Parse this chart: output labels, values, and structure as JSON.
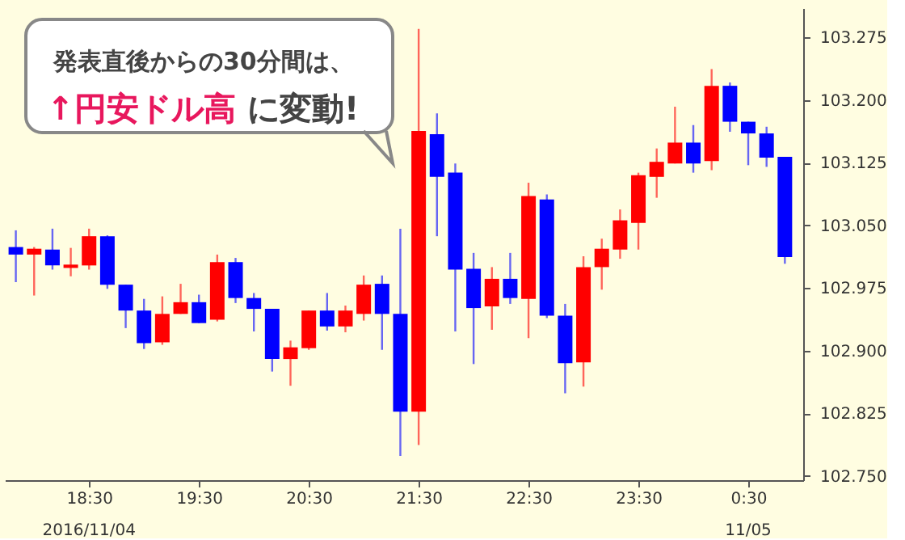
{
  "chart_data": {
    "type": "candlestick",
    "annotations": [
      "発表直後からの30分間は、",
      "↑円安ドル高",
      "に変動!",
      "2016/11/04",
      "11/05"
    ],
    "x": [
      "2016-11-04T17:50",
      "2016-11-04T18:00",
      "2016-11-04T18:10",
      "2016-11-04T18:20",
      "2016-11-04T18:30",
      "2016-11-04T18:40",
      "2016-11-04T18:50",
      "2016-11-04T19:00",
      "2016-11-04T19:10",
      "2016-11-04T19:20",
      "2016-11-04T19:30",
      "2016-11-04T19:40",
      "2016-11-04T19:50",
      "2016-11-04T20:00",
      "2016-11-04T20:10",
      "2016-11-04T20:20",
      "2016-11-04T20:30",
      "2016-11-04T20:40",
      "2016-11-04T20:50",
      "2016-11-04T21:00",
      "2016-11-04T21:10",
      "2016-11-04T21:20",
      "2016-11-04T21:30",
      "2016-11-04T21:40",
      "2016-11-04T21:50",
      "2016-11-04T22:00",
      "2016-11-04T22:10",
      "2016-11-04T22:20",
      "2016-11-04T22:30",
      "2016-11-04T22:40",
      "2016-11-04T22:50",
      "2016-11-04T23:00",
      "2016-11-04T23:10",
      "2016-11-04T23:20",
      "2016-11-04T23:30",
      "2016-11-04T23:40",
      "2016-11-04T23:50",
      "2016-11-05T00:00",
      "2016-11-05T00:10",
      "2016-11-05T00:20",
      "2016-11-05T00:30",
      "2016-11-05T00:40",
      "2016-11-05T00:50"
    ],
    "ohlc": [
      [
        103.024,
        103.044,
        102.982,
        103.015
      ],
      [
        103.015,
        103.024,
        102.966,
        103.022
      ],
      [
        103.021,
        103.046,
        102.997,
        103.002
      ],
      [
        102.999,
        103.023,
        102.989,
        103.003
      ],
      [
        103.002,
        103.046,
        102.997,
        103.037
      ],
      [
        103.037,
        103.038,
        102.974,
        102.979
      ],
      [
        102.979,
        102.979,
        102.927,
        102.948
      ],
      [
        102.948,
        102.962,
        102.902,
        102.909
      ],
      [
        102.91,
        102.965,
        102.907,
        102.944
      ],
      [
        102.944,
        102.98,
        102.944,
        102.958
      ],
      [
        102.958,
        102.967,
        102.933,
        102.933
      ],
      [
        102.937,
        103.015,
        102.935,
        103.006
      ],
      [
        103.006,
        103.011,
        102.957,
        102.963
      ],
      [
        102.963,
        102.969,
        102.923,
        102.95
      ],
      [
        102.95,
        102.95,
        102.875,
        102.89
      ],
      [
        102.89,
        102.912,
        102.858,
        102.904
      ],
      [
        102.903,
        102.948,
        102.901,
        102.948
      ],
      [
        102.948,
        102.969,
        102.924,
        102.929
      ],
      [
        102.929,
        102.954,
        102.922,
        102.948
      ],
      [
        102.944,
        102.99,
        102.936,
        102.979
      ],
      [
        102.98,
        102.99,
        102.901,
        102.944
      ],
      [
        102.944,
        103.046,
        102.774,
        102.827
      ],
      [
        102.827,
        103.285,
        102.787,
        103.163
      ],
      [
        103.159,
        103.184,
        103.037,
        103.108
      ],
      [
        103.113,
        103.124,
        102.923,
        102.997
      ],
      [
        102.998,
        103.017,
        102.884,
        102.951
      ],
      [
        102.953,
        103.0,
        102.925,
        102.986
      ],
      [
        102.986,
        103.017,
        102.956,
        102.963
      ],
      [
        102.962,
        103.101,
        102.915,
        103.085
      ],
      [
        103.081,
        103.087,
        102.939,
        102.942
      ],
      [
        102.942,
        102.956,
        102.849,
        102.885
      ],
      [
        102.886,
        103.013,
        102.857,
        103.0
      ],
      [
        103.0,
        103.034,
        102.973,
        103.022
      ],
      [
        103.021,
        103.069,
        103.01,
        103.056
      ],
      [
        103.053,
        103.113,
        103.021,
        103.11
      ],
      [
        103.108,
        103.142,
        103.083,
        103.126
      ],
      [
        103.124,
        103.192,
        103.124,
        103.149
      ],
      [
        103.149,
        103.17,
        103.113,
        103.124
      ],
      [
        103.127,
        103.237,
        103.116,
        103.217
      ],
      [
        103.217,
        103.221,
        103.162,
        103.174
      ],
      [
        103.174,
        103.174,
        103.122,
        103.16
      ],
      [
        103.16,
        103.168,
        103.12,
        103.131
      ],
      [
        103.132,
        103.132,
        103.004,
        103.012
      ]
    ],
    "colors": [
      "#0000ff",
      "#ff0000",
      "#0000ff",
      "#ff0000",
      "#ff0000",
      "#0000ff",
      "#0000ff",
      "#0000ff",
      "#ff0000",
      "#ff0000",
      "#0000ff",
      "#ff0000",
      "#0000ff",
      "#0000ff",
      "#0000ff",
      "#ff0000",
      "#ff0000",
      "#0000ff",
      "#ff0000",
      "#ff0000",
      "#0000ff",
      "#0000ff",
      "#ff0000",
      "#0000ff",
      "#0000ff",
      "#0000ff",
      "#ff0000",
      "#0000ff",
      "#ff0000",
      "#0000ff",
      "#0000ff",
      "#ff0000",
      "#ff0000",
      "#ff0000",
      "#ff0000",
      "#ff0000",
      "#ff0000",
      "#0000ff",
      "#ff0000",
      "#0000ff",
      "#0000ff",
      "#0000ff",
      "#0000ff"
    ],
    "xlim": [
      "2016-11-04T17:44",
      "2016-11-05T01:00"
    ],
    "xticks": [
      {
        "value": "2016-11-04T18:30",
        "label": "18:30"
      },
      {
        "value": "2016-11-04T19:30",
        "label": "19:30"
      },
      {
        "value": "2016-11-04T20:30",
        "label": "20:30"
      },
      {
        "value": "2016-11-04T21:30",
        "label": "21:30"
      },
      {
        "value": "2016-11-04T22:30",
        "label": "22:30"
      },
      {
        "value": "2016-11-04T23:30",
        "label": "23:30"
      },
      {
        "value": "2016-11-05T00:30",
        "label": "0:30"
      }
    ],
    "ylim": [
      102.745,
      103.31
    ],
    "yticks": [
      {
        "value": 102.75,
        "label": "102.750"
      },
      {
        "value": 102.825,
        "label": "102.825"
      },
      {
        "value": 102.9,
        "label": "102.900"
      },
      {
        "value": 102.975,
        "label": "102.975"
      },
      {
        "value": 103.05,
        "label": "103.050"
      },
      {
        "value": 103.125,
        "label": "103.125"
      },
      {
        "value": 103.2,
        "label": "103.200"
      },
      {
        "value": 103.275,
        "label": "103.275"
      }
    ],
    "grid": false
  }
}
